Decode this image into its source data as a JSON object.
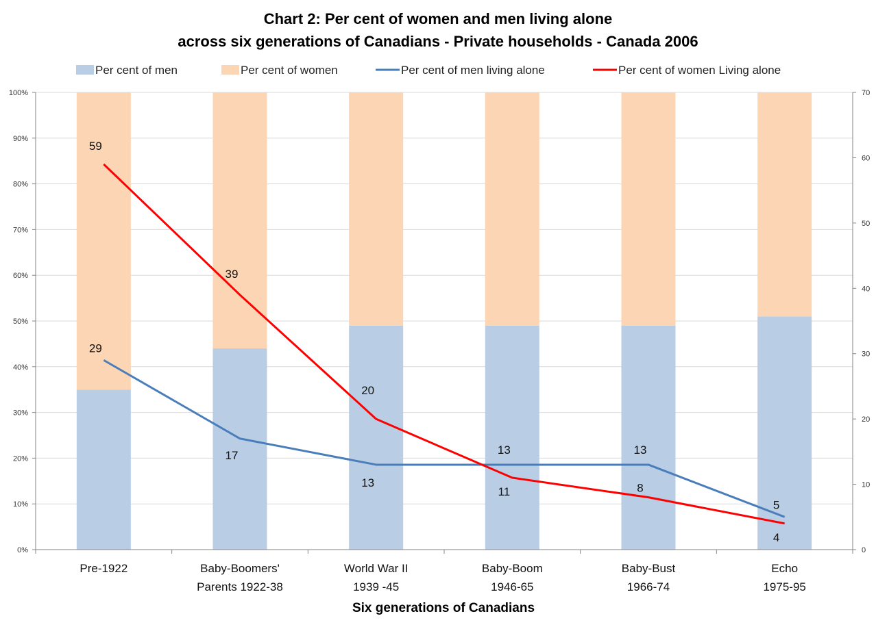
{
  "chart_data": {
    "type": "bar",
    "title_line1": "Chart 2: Per cent of women and men living alone",
    "title_line2": "across six generations of Canadians - Private households - Canada 2006",
    "xlabel": "Six generations of Canadians",
    "categories": [
      [
        "Pre-1922"
      ],
      [
        "Baby-Boomers'",
        "Parents 1922-38"
      ],
      [
        "World War II",
        "1939 -45"
      ],
      [
        "Baby-Boom",
        "1946-65"
      ],
      [
        "Baby-Bust",
        "1966-74"
      ],
      [
        "Echo",
        "1975-95"
      ]
    ],
    "bar_series": [
      {
        "name": "Per cent of men",
        "values": [
          35,
          44,
          49,
          49,
          49,
          51
        ],
        "color": "#b9cde5"
      },
      {
        "name": "Per cent of women",
        "values": [
          65,
          56,
          51,
          51,
          51,
          49
        ],
        "color": "#fcd5b5"
      }
    ],
    "line_series": [
      {
        "name": "Per cent of men living alone",
        "values": [
          29,
          17,
          13,
          13,
          13,
          5
        ],
        "color": "#4a7ebb"
      },
      {
        "name": "Per cent of women Living alone",
        "values": [
          59,
          39,
          20,
          11,
          8,
          4
        ],
        "color": "#ff0000"
      }
    ],
    "left_axis": {
      "ylim": [
        0,
        100
      ],
      "ticks": [
        "0%",
        "10%",
        "20%",
        "30%",
        "40%",
        "50%",
        "60%",
        "70%",
        "80%",
        "90%",
        "100%"
      ]
    },
    "right_axis": {
      "ylim": [
        0,
        70
      ],
      "ticks": [
        "0",
        "10",
        "20",
        "30",
        "40",
        "50",
        "60",
        "70"
      ]
    },
    "grid": true,
    "legend_position": "top"
  }
}
